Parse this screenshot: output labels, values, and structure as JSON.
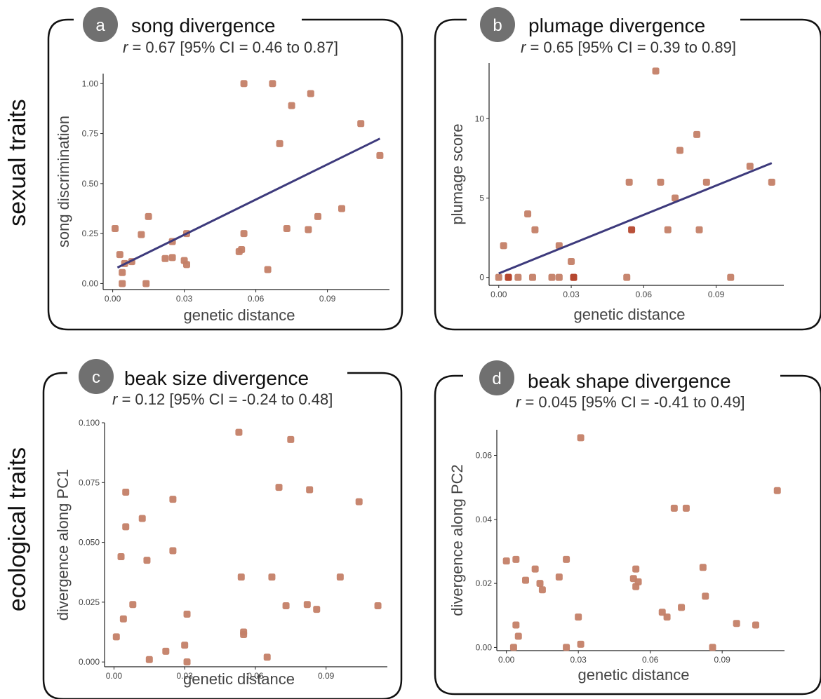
{
  "row_labels": [
    "sexual traits",
    "ecological traits"
  ],
  "colors": {
    "point": "#c47f67",
    "point_dark": "#b5472e",
    "fit_line": "#3d3a7c",
    "frame": "#111111",
    "badge": "#707070",
    "axis": "#222222"
  },
  "chart_data": [
    {
      "type": "scatter",
      "letter": "a",
      "title": "song divergence",
      "stat": {
        "r": "r",
        "text": " = 0.67 [95% CI = 0.46 to 0.87]"
      },
      "xlabel": "genetic distance",
      "ylabel": "song discrimination",
      "xlim": [
        -0.004,
        0.116
      ],
      "ylim": [
        -0.03,
        1.05
      ],
      "xticks": [
        0.0,
        0.03,
        0.06,
        0.09
      ],
      "xtick_labels": [
        "0.00",
        "0.03",
        "0.06",
        "0.09"
      ],
      "yticks": [
        0.0,
        0.25,
        0.5,
        0.75,
        1.0
      ],
      "ytick_labels": [
        "0.00",
        "0.25",
        "0.50",
        "0.75",
        "1.00"
      ],
      "grid": false,
      "fit": {
        "x0": 0.002,
        "y0": 0.08,
        "x1": 0.112,
        "y1": 0.725
      },
      "points": [
        {
          "x": 0.001,
          "y": 0.275
        },
        {
          "x": 0.003,
          "y": 0.145
        },
        {
          "x": 0.004,
          "y": 0.055
        },
        {
          "x": 0.004,
          "y": 0.0
        },
        {
          "x": 0.005,
          "y": 0.1
        },
        {
          "x": 0.008,
          "y": 0.11
        },
        {
          "x": 0.012,
          "y": 0.245
        },
        {
          "x": 0.014,
          "y": 0.0
        },
        {
          "x": 0.015,
          "y": 0.335
        },
        {
          "x": 0.022,
          "y": 0.125
        },
        {
          "x": 0.025,
          "y": 0.13
        },
        {
          "x": 0.025,
          "y": 0.21
        },
        {
          "x": 0.03,
          "y": 0.115
        },
        {
          "x": 0.031,
          "y": 0.25
        },
        {
          "x": 0.031,
          "y": 0.095
        },
        {
          "x": 0.053,
          "y": 0.16
        },
        {
          "x": 0.054,
          "y": 0.17
        },
        {
          "x": 0.055,
          "y": 0.25
        },
        {
          "x": 0.055,
          "y": 1.0
        },
        {
          "x": 0.065,
          "y": 0.07
        },
        {
          "x": 0.067,
          "y": 1.0
        },
        {
          "x": 0.07,
          "y": 0.7
        },
        {
          "x": 0.073,
          "y": 0.275
        },
        {
          "x": 0.075,
          "y": 0.89
        },
        {
          "x": 0.082,
          "y": 0.27
        },
        {
          "x": 0.083,
          "y": 0.95
        },
        {
          "x": 0.086,
          "y": 0.335
        },
        {
          "x": 0.096,
          "y": 0.375
        },
        {
          "x": 0.104,
          "y": 0.8
        },
        {
          "x": 0.112,
          "y": 0.64
        }
      ]
    },
    {
      "type": "scatter",
      "letter": "b",
      "title": "plumage divergence",
      "stat": {
        "r": "r",
        "text": " = 0.65 [95% CI = 0.39 to 0.89]"
      },
      "xlabel": "genetic distance",
      "ylabel": "plumage score",
      "xlim": [
        -0.004,
        0.118
      ],
      "ylim": [
        -0.5,
        13.5
      ],
      "xticks": [
        0.0,
        0.03,
        0.06,
        0.09
      ],
      "xtick_labels": [
        "0.00",
        "0.03",
        "0.06",
        "0.09"
      ],
      "yticks": [
        0,
        5,
        10
      ],
      "ytick_labels": [
        "0",
        "5",
        "10"
      ],
      "grid": false,
      "fit": {
        "x0": 0.0,
        "y0": 0.25,
        "x1": 0.113,
        "y1": 7.2
      },
      "points": [
        {
          "x": 0.0,
          "y": 0
        },
        {
          "x": 0.002,
          "y": 2
        },
        {
          "x": 0.004,
          "y": 0,
          "dark": true
        },
        {
          "x": 0.004,
          "y": 0,
          "dark": true
        },
        {
          "x": 0.008,
          "y": 0
        },
        {
          "x": 0.012,
          "y": 4
        },
        {
          "x": 0.014,
          "y": 0
        },
        {
          "x": 0.015,
          "y": 3
        },
        {
          "x": 0.022,
          "y": 0
        },
        {
          "x": 0.025,
          "y": 2
        },
        {
          "x": 0.025,
          "y": 0
        },
        {
          "x": 0.03,
          "y": 1
        },
        {
          "x": 0.031,
          "y": 0,
          "dark": true
        },
        {
          "x": 0.031,
          "y": 0,
          "dark": true
        },
        {
          "x": 0.053,
          "y": 0
        },
        {
          "x": 0.054,
          "y": 6
        },
        {
          "x": 0.055,
          "y": 3,
          "dark": true
        },
        {
          "x": 0.065,
          "y": 13
        },
        {
          "x": 0.067,
          "y": 6
        },
        {
          "x": 0.07,
          "y": 3
        },
        {
          "x": 0.073,
          "y": 5
        },
        {
          "x": 0.075,
          "y": 8
        },
        {
          "x": 0.082,
          "y": 9
        },
        {
          "x": 0.083,
          "y": 3
        },
        {
          "x": 0.086,
          "y": 6
        },
        {
          "x": 0.096,
          "y": 0
        },
        {
          "x": 0.104,
          "y": 7
        },
        {
          "x": 0.113,
          "y": 6
        }
      ]
    },
    {
      "type": "scatter",
      "letter": "c",
      "title": "beak size divergence",
      "stat": {
        "r": "r",
        "text": " = 0.12 [95% CI = -0.24 to 0.48]"
      },
      "xlabel": "genetic distance",
      "ylabel": "divergence along PC1",
      "xlim": [
        -0.004,
        0.116
      ],
      "ylim": [
        -0.002,
        0.1
      ],
      "xticks": [
        0.0,
        0.03,
        0.06,
        0.09
      ],
      "xtick_labels": [
        "0.00",
        "0.03",
        "0.06",
        "0.09"
      ],
      "yticks": [
        0.0,
        0.025,
        0.05,
        0.075,
        0.1
      ],
      "ytick_labels": [
        "0.000",
        "0.025",
        "0.050",
        "0.075",
        "0.100"
      ],
      "grid": false,
      "points": [
        {
          "x": 0.001,
          "y": 0.0105
        },
        {
          "x": 0.003,
          "y": 0.044
        },
        {
          "x": 0.004,
          "y": 0.018
        },
        {
          "x": 0.005,
          "y": 0.071
        },
        {
          "x": 0.005,
          "y": 0.0565
        },
        {
          "x": 0.008,
          "y": 0.024
        },
        {
          "x": 0.012,
          "y": 0.06
        },
        {
          "x": 0.014,
          "y": 0.0425
        },
        {
          "x": 0.015,
          "y": 0.001
        },
        {
          "x": 0.022,
          "y": 0.0045
        },
        {
          "x": 0.025,
          "y": 0.068
        },
        {
          "x": 0.025,
          "y": 0.0465
        },
        {
          "x": 0.03,
          "y": 0.007
        },
        {
          "x": 0.031,
          "y": 0.02
        },
        {
          "x": 0.031,
          "y": 0.0
        },
        {
          "x": 0.053,
          "y": 0.096
        },
        {
          "x": 0.054,
          "y": 0.0355
        },
        {
          "x": 0.055,
          "y": 0.0115
        },
        {
          "x": 0.055,
          "y": 0.0125
        },
        {
          "x": 0.065,
          "y": 0.002
        },
        {
          "x": 0.067,
          "y": 0.0355
        },
        {
          "x": 0.07,
          "y": 0.073
        },
        {
          "x": 0.073,
          "y": 0.0235
        },
        {
          "x": 0.075,
          "y": 0.093
        },
        {
          "x": 0.082,
          "y": 0.024
        },
        {
          "x": 0.083,
          "y": 0.072
        },
        {
          "x": 0.086,
          "y": 0.022
        },
        {
          "x": 0.096,
          "y": 0.0355
        },
        {
          "x": 0.104,
          "y": 0.067
        },
        {
          "x": 0.112,
          "y": 0.0235
        }
      ]
    },
    {
      "type": "scatter",
      "letter": "d",
      "title": "beak shape divergence",
      "stat": {
        "r": "r",
        "text": " = 0.045 [95% CI = -0.41 to 0.49]"
      },
      "xlabel": "genetic distance",
      "ylabel": "divergence along PC2",
      "xlim": [
        -0.004,
        0.116
      ],
      "ylim": [
        -0.001,
        0.068
      ],
      "xticks": [
        0.0,
        0.03,
        0.06,
        0.09
      ],
      "xtick_labels": [
        "0.00",
        "0.03",
        "0.06",
        "0.09"
      ],
      "yticks": [
        0.0,
        0.02,
        0.04,
        0.06
      ],
      "ytick_labels": [
        "0.00",
        "0.02",
        "0.04",
        "0.06"
      ],
      "grid": false,
      "points": [
        {
          "x": 0.0,
          "y": 0.027
        },
        {
          "x": 0.003,
          "y": 0.0
        },
        {
          "x": 0.004,
          "y": 0.0275
        },
        {
          "x": 0.004,
          "y": 0.007
        },
        {
          "x": 0.005,
          "y": 0.0035
        },
        {
          "x": 0.008,
          "y": 0.021
        },
        {
          "x": 0.012,
          "y": 0.0245
        },
        {
          "x": 0.014,
          "y": 0.02
        },
        {
          "x": 0.015,
          "y": 0.018
        },
        {
          "x": 0.022,
          "y": 0.022
        },
        {
          "x": 0.025,
          "y": 0.0275
        },
        {
          "x": 0.025,
          "y": 0.0
        },
        {
          "x": 0.03,
          "y": 0.0095
        },
        {
          "x": 0.031,
          "y": 0.0655
        },
        {
          "x": 0.031,
          "y": 0.001
        },
        {
          "x": 0.053,
          "y": 0.0215
        },
        {
          "x": 0.054,
          "y": 0.019
        },
        {
          "x": 0.054,
          "y": 0.0245
        },
        {
          "x": 0.055,
          "y": 0.0205
        },
        {
          "x": 0.065,
          "y": 0.011
        },
        {
          "x": 0.067,
          "y": 0.0095
        },
        {
          "x": 0.07,
          "y": 0.0435
        },
        {
          "x": 0.073,
          "y": 0.0125
        },
        {
          "x": 0.075,
          "y": 0.0435
        },
        {
          "x": 0.082,
          "y": 0.025
        },
        {
          "x": 0.083,
          "y": 0.016
        },
        {
          "x": 0.086,
          "y": 0.0
        },
        {
          "x": 0.096,
          "y": 0.0075
        },
        {
          "x": 0.104,
          "y": 0.007
        },
        {
          "x": 0.113,
          "y": 0.049
        }
      ]
    }
  ]
}
